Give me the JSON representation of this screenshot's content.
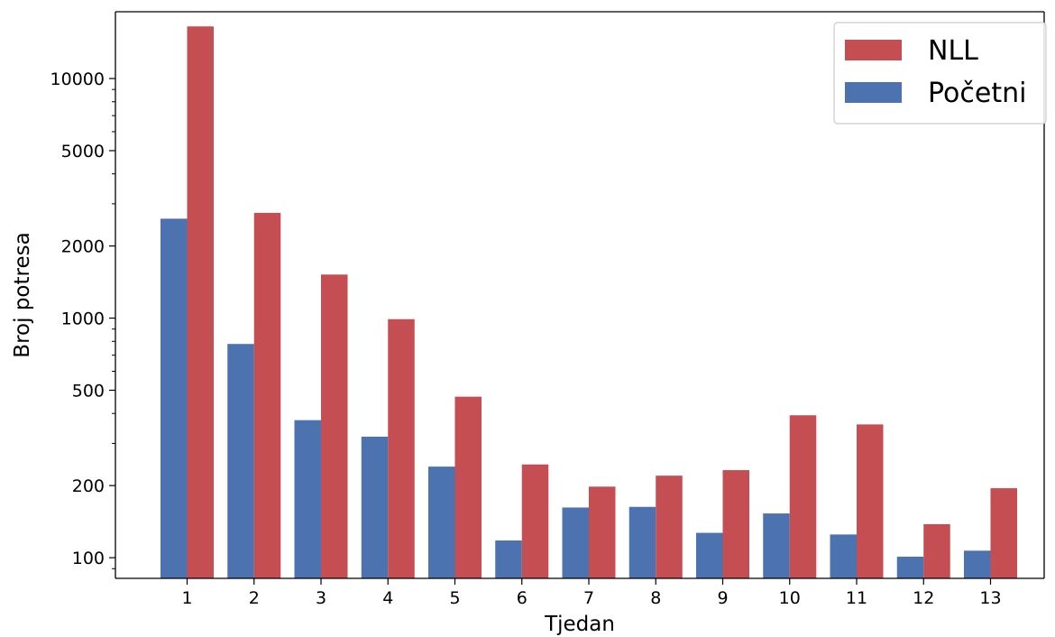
{
  "chart_data": {
    "type": "bar",
    "title": "",
    "xlabel": "Tjedan",
    "ylabel": "Broj potresa",
    "yscale": "log",
    "ylim": [
      82,
      19000
    ],
    "grid": false,
    "legend_position": "top-right",
    "categories": [
      "1",
      "2",
      "3",
      "4",
      "5",
      "6",
      "7",
      "8",
      "9",
      "10",
      "11",
      "12",
      "13"
    ],
    "y_ticks": [
      100,
      200,
      500,
      1000,
      2000,
      5000,
      10000
    ],
    "y_tick_labels": [
      "100",
      "200",
      "500",
      "1000",
      "2000",
      "5000",
      "10000"
    ],
    "series": [
      {
        "name": "Početni",
        "color": "#4c72b0",
        "values": [
          2600,
          780,
          375,
          320,
          240,
          118,
          162,
          163,
          127,
          153,
          125,
          101,
          107
        ]
      },
      {
        "name": "NLL",
        "color": "#c44e52",
        "values": [
          16500,
          2750,
          1520,
          990,
          470,
          245,
          198,
          220,
          232,
          393,
          360,
          138,
          195
        ]
      }
    ],
    "legend_order": [
      "NLL",
      "Početni"
    ]
  }
}
